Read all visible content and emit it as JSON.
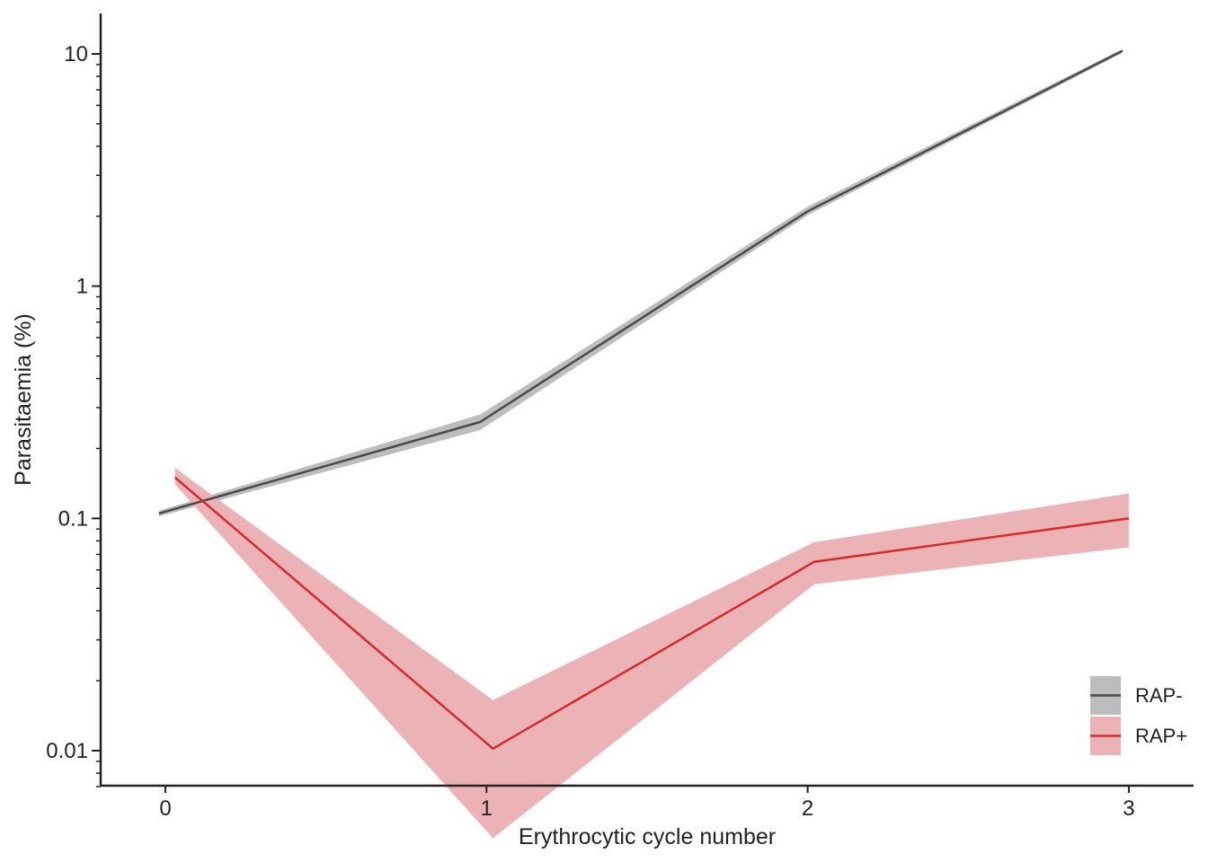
{
  "chart_data": {
    "type": "line",
    "title": "",
    "xlabel": "Erythrocytic cycle number",
    "ylabel": "Parasitaemia (%)",
    "y_scale": "log",
    "xlim": [
      -0.2,
      3.2
    ],
    "ylim": [
      0.007,
      15
    ],
    "x_ticks": [
      0,
      1,
      2,
      3
    ],
    "x_tick_labels": [
      "0",
      "1",
      "2",
      "3"
    ],
    "y_ticks": [
      10,
      1,
      0.1,
      0.01
    ],
    "y_tick_labels": [
      "10",
      "1",
      "0.1",
      "0.01"
    ],
    "grid": false,
    "legend_position": "bottom-right",
    "series": [
      {
        "name": "RAP-",
        "color": "#4a4a4a",
        "band_color": "#bdbdbd",
        "x": [
          -0.02,
          0.98,
          2.0,
          2.98
        ],
        "values": [
          0.105,
          0.26,
          2.1,
          10.3
        ],
        "lower": [
          0.102,
          0.24,
          2.02,
          10.1
        ],
        "upper": [
          0.108,
          0.28,
          2.2,
          10.5
        ]
      },
      {
        "name": "RAP+",
        "color": "#d62a2a",
        "band_color": "#ecb3b6",
        "x": [
          0.03,
          1.02,
          2.02,
          3.0
        ],
        "values": [
          0.15,
          0.0102,
          0.065,
          0.1
        ],
        "lower": [
          0.14,
          0.0042,
          0.052,
          0.075
        ],
        "upper": [
          0.165,
          0.0165,
          0.079,
          0.128
        ]
      }
    ]
  }
}
